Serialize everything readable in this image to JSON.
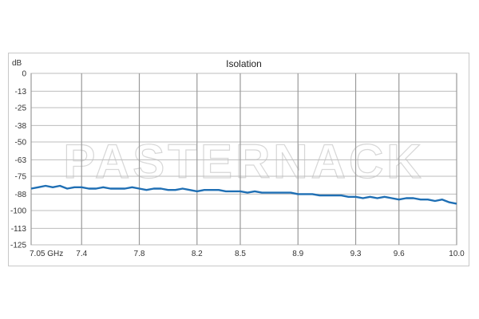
{
  "watermark": "PASTERNACK",
  "chart_data": {
    "type": "line",
    "title": "Isolation",
    "ylabel": "dB",
    "xlabel": "",
    "ylim": [
      -125,
      0
    ],
    "xlim": [
      7.05,
      10.0
    ],
    "y_ticks": [
      0,
      -13,
      -25,
      -38,
      -50,
      -63,
      -75,
      -88,
      -100,
      -113,
      -125
    ],
    "x_ticks": [
      7.05,
      7.4,
      7.8,
      8.2,
      8.5,
      8.9,
      9.3,
      9.6,
      10.0
    ],
    "x_tick_labels": [
      "7.05 GHz",
      "7.4",
      "7.8",
      "8.2",
      "8.5",
      "8.9",
      "9.3",
      "9.6",
      "10.0"
    ],
    "grid": true,
    "line_color": "#1f6fb4",
    "series": [
      {
        "x": [
          7.05,
          7.1,
          7.15,
          7.2,
          7.25,
          7.3,
          7.35,
          7.4,
          7.45,
          7.5,
          7.55,
          7.6,
          7.65,
          7.7,
          7.75,
          7.8,
          7.85,
          7.9,
          7.95,
          8.0,
          8.05,
          8.1,
          8.15,
          8.2,
          8.25,
          8.3,
          8.35,
          8.4,
          8.45,
          8.5,
          8.55,
          8.6,
          8.65,
          8.7,
          8.75,
          8.8,
          8.85,
          8.9,
          8.95,
          9.0,
          9.05,
          9.1,
          9.15,
          9.2,
          9.25,
          9.3,
          9.35,
          9.4,
          9.45,
          9.5,
          9.55,
          9.6,
          9.65,
          9.7,
          9.75,
          9.8,
          9.85,
          9.9,
          9.95,
          10.0
        ],
        "values": [
          -84,
          -83,
          -82,
          -83,
          -82,
          -84,
          -83,
          -83,
          -84,
          -84,
          -83,
          -84,
          -84,
          -84,
          -83,
          -84,
          -85,
          -84,
          -84,
          -85,
          -85,
          -84,
          -85,
          -86,
          -85,
          -85,
          -85,
          -86,
          -86,
          -86,
          -87,
          -86,
          -87,
          -87,
          -87,
          -87,
          -87,
          -88,
          -88,
          -88,
          -89,
          -89,
          -89,
          -89,
          -90,
          -90,
          -91,
          -90,
          -91,
          -90,
          -91,
          -92,
          -91,
          -91,
          -92,
          -92,
          -93,
          -92,
          -94,
          -95
        ]
      }
    ]
  }
}
